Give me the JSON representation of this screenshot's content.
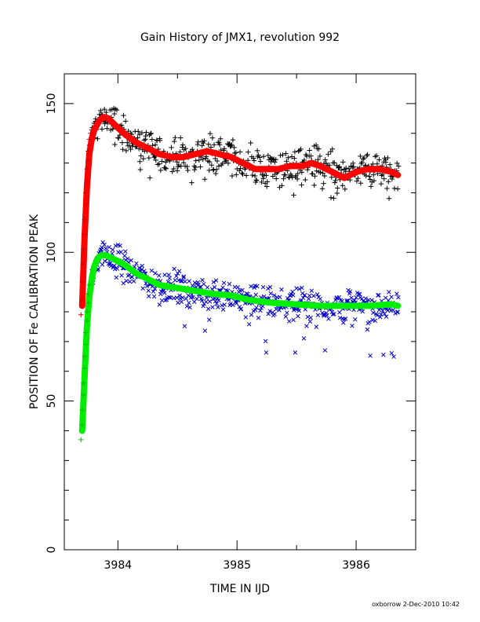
{
  "chart_data": {
    "type": "scatter",
    "title": "Gain History of JMX1, revolution 992",
    "xlabel": "TIME IN IJD",
    "ylabel": "POSITION OF Fe CALIBRATION PEAK",
    "xlim": [
      3983.55,
      3986.5
    ],
    "ylim": [
      0,
      160
    ],
    "xticks": [
      3984,
      3985,
      3986
    ],
    "xtick_labels": [
      "3984",
      "3985",
      "3986"
    ],
    "yticks": [
      0,
      50,
      100,
      150
    ],
    "ytick_labels": [
      "0",
      "50",
      "100",
      "150"
    ],
    "grid": false,
    "series": [
      {
        "kind": "fit",
        "color": "#ff0000",
        "x": [
          3983.7,
          3983.72,
          3983.74,
          3983.76,
          3983.78,
          3983.8,
          3983.84,
          3983.88,
          3983.92,
          3983.97,
          3984.05,
          3984.15,
          3984.25,
          3984.35,
          3984.45,
          3984.55,
          3984.65,
          3984.75,
          3984.85,
          3984.95,
          3985.05,
          3985.15,
          3985.25,
          3985.35,
          3985.45,
          3985.55,
          3985.62,
          3985.7,
          3985.8,
          3985.9,
          3986.0,
          3986.1,
          3986.2,
          3986.3,
          3986.35
        ],
        "y": [
          82,
          105,
          122,
          133,
          138,
          141,
          144,
          145.5,
          145,
          143,
          140,
          137,
          135,
          133,
          132,
          132,
          133,
          134,
          133,
          132,
          130,
          128,
          128,
          128,
          129,
          129,
          130,
          129,
          127,
          125,
          127,
          128,
          128,
          127,
          126
        ]
      },
      {
        "kind": "fit",
        "color": "#00ee00",
        "x": [
          3983.7,
          3983.72,
          3983.74,
          3983.76,
          3983.78,
          3983.8,
          3983.83,
          3983.86,
          3983.9,
          3983.95,
          3984.05,
          3984.15,
          3984.25,
          3984.35,
          3984.5,
          3984.65,
          3984.8,
          3984.95,
          3985.1,
          3985.3,
          3985.5,
          3985.7,
          3985.9,
          3986.1,
          3986.3,
          3986.35
        ],
        "y": [
          40,
          58,
          75,
          85,
          91,
          95,
          98,
          99,
          99,
          98,
          96,
          93,
          91,
          89,
          88,
          87,
          86,
          85.5,
          84,
          83,
          82.5,
          82,
          82,
          82,
          82.5,
          82
        ]
      }
    ],
    "scatter_series": [
      {
        "marker": "plus",
        "color": "#000000",
        "noise": 4.5,
        "outlier_low": 10,
        "points_every": 0.005,
        "follows_fit": 0
      },
      {
        "marker": "cross",
        "color": "#0000cc",
        "noise": 4,
        "outlier_low": 18,
        "points_every": 0.005,
        "follows_fit": 1
      }
    ],
    "early_markers": [
      {
        "marker": "plus",
        "color": "#cc0000",
        "x": [
          3983.69,
          3983.7,
          3983.7,
          3983.71,
          3983.71,
          3983.72,
          3983.72,
          3983.73,
          3983.73,
          3983.74,
          3983.74,
          3983.75,
          3983.75,
          3983.76,
          3983.76,
          3983.77
        ],
        "y": [
          79,
          84,
          90,
          96,
          101,
          106,
          111,
          116,
          120,
          124,
          128,
          131,
          134,
          136,
          138,
          140
        ]
      },
      {
        "marker": "plus",
        "color": "#00bb00",
        "x": [
          3983.69,
          3983.7,
          3983.7,
          3983.71,
          3983.71,
          3983.72,
          3983.72,
          3983.73,
          3983.73,
          3983.74,
          3983.74,
          3983.75,
          3983.75,
          3983.76
        ],
        "y": [
          37,
          42,
          47,
          52,
          56,
          61,
          65,
          69,
          73,
          77,
          80,
          83,
          86,
          89
        ]
      }
    ]
  },
  "footer": {
    "stamp": "oxborrow   2-Dec-2010 10:42"
  }
}
